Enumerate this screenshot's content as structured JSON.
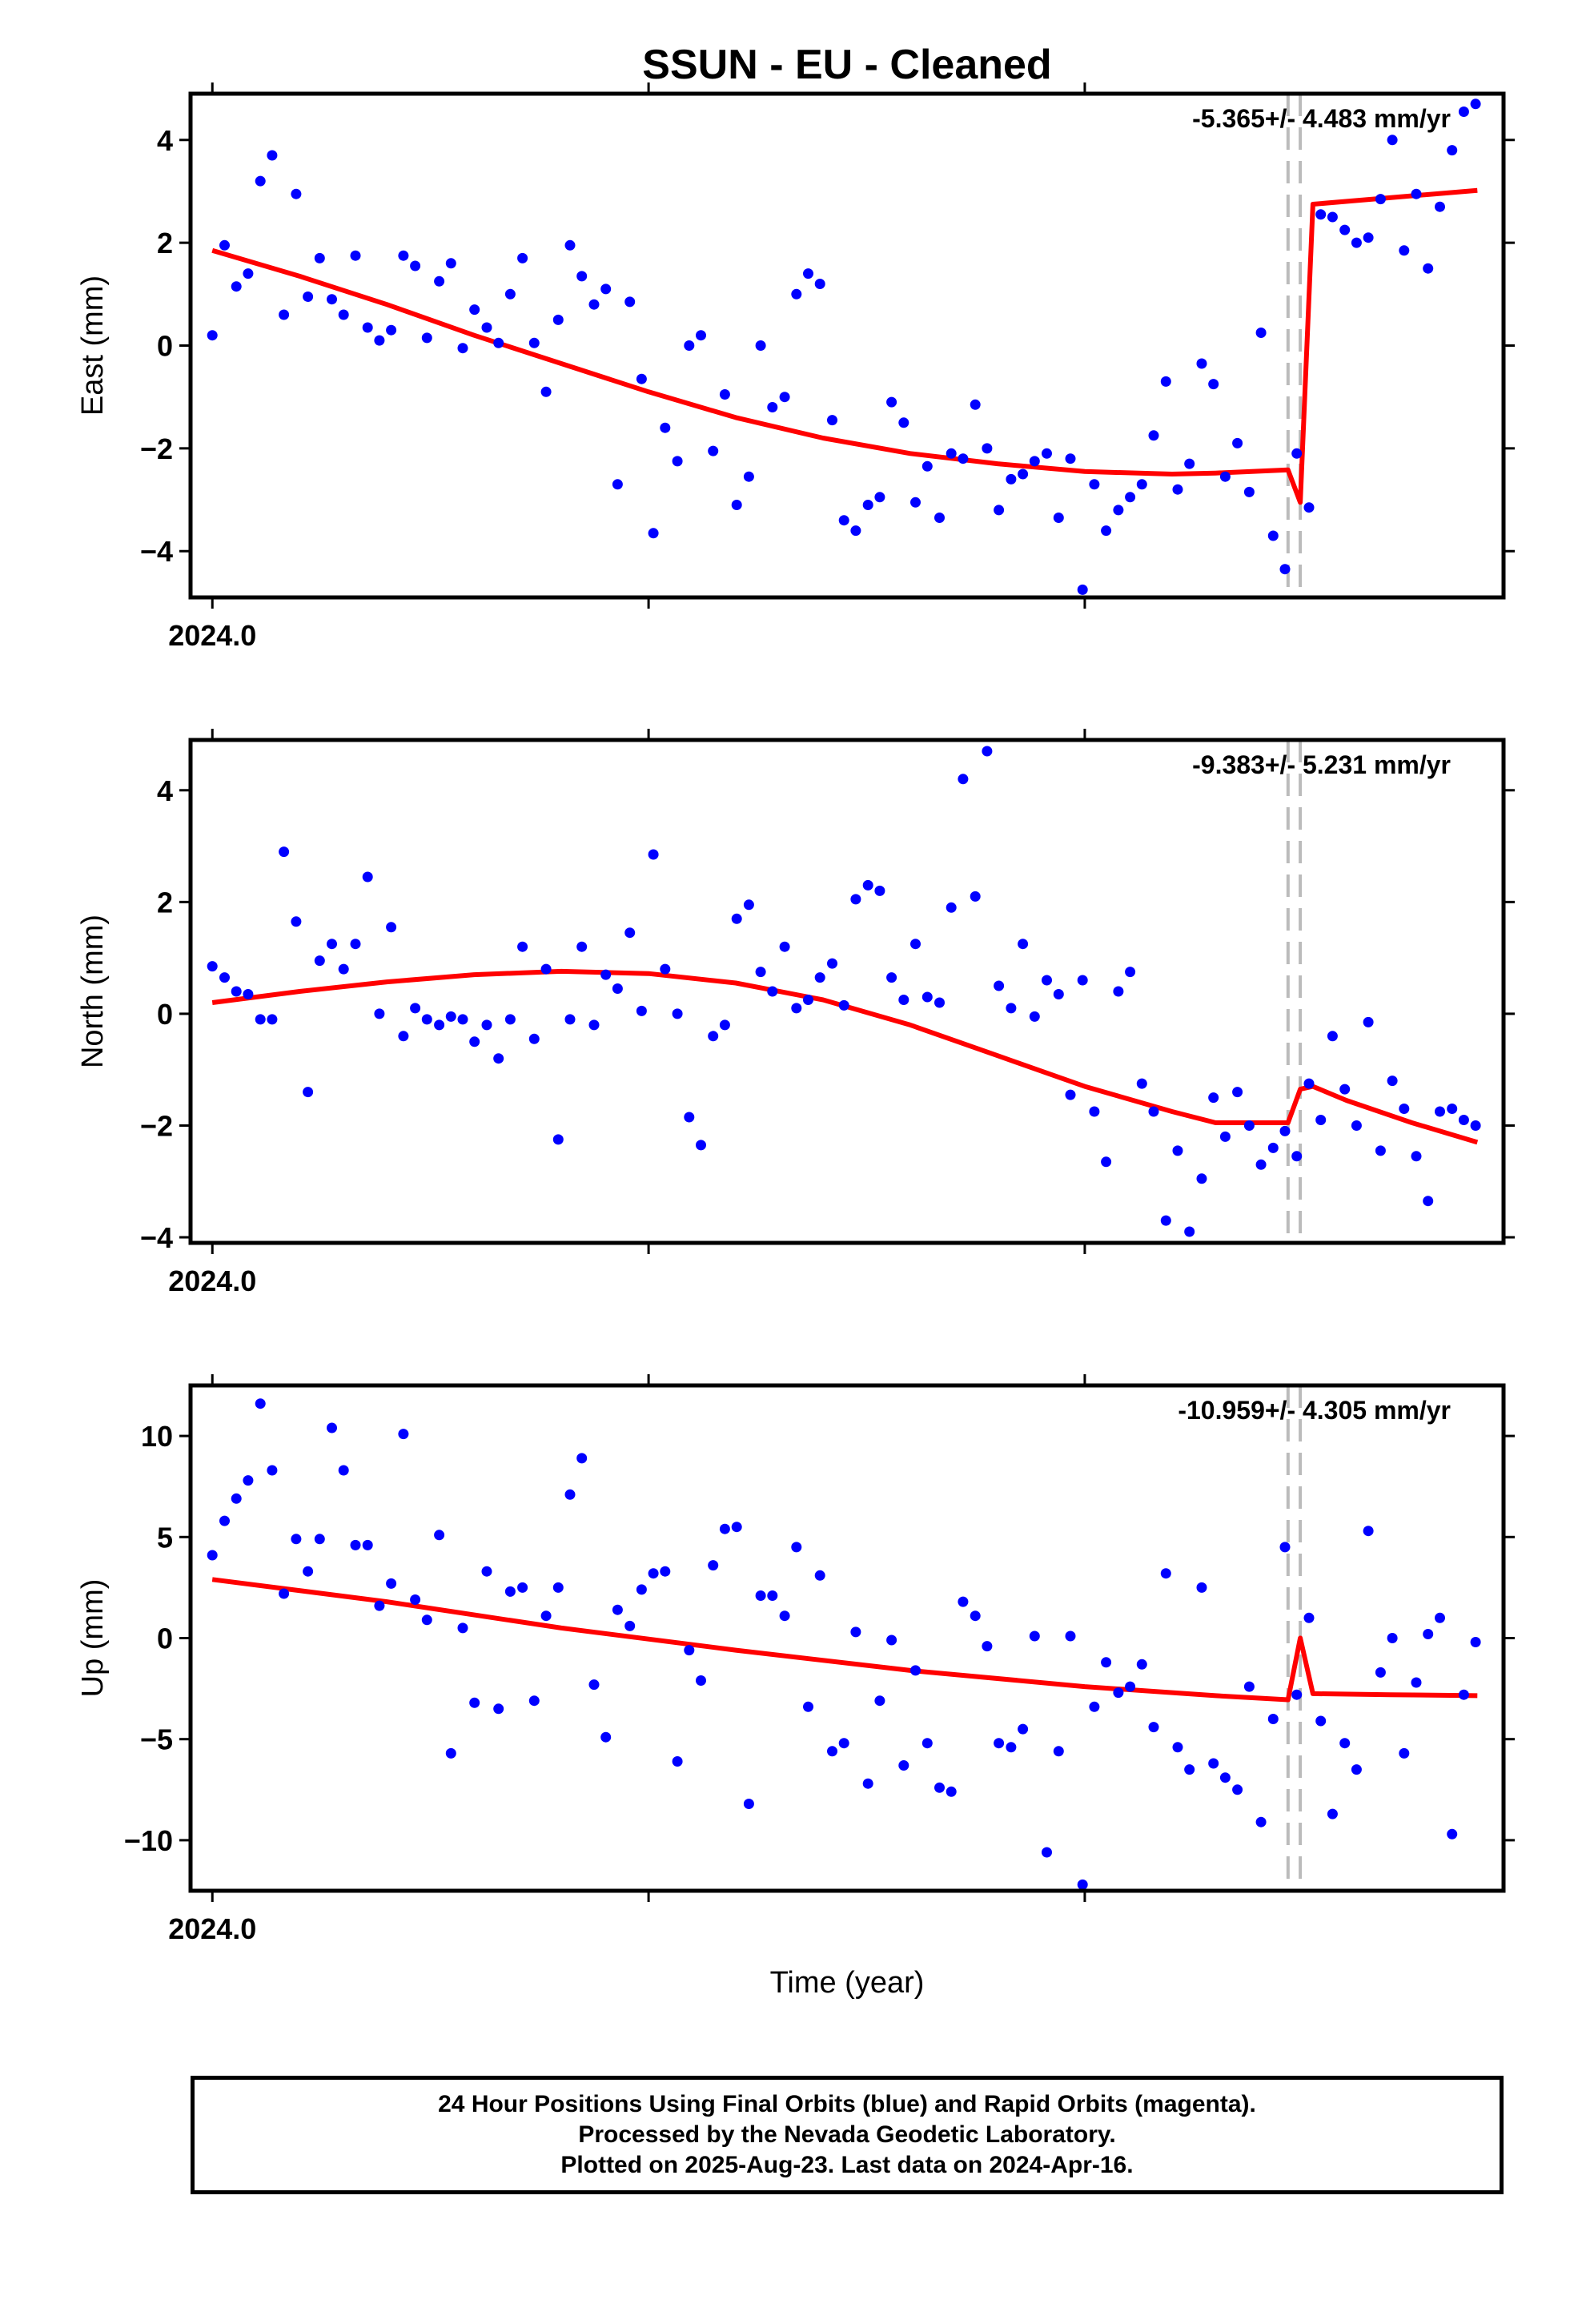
{
  "title": "SSUN  - EU - Cleaned",
  "xlabel": "Time (year)",
  "footer": {
    "line1": "24 Hour Positions Using Final Orbits (blue) and Rapid Orbits (magenta).",
    "line2": "Processed by the Nevada Geodetic Laboratory.",
    "line3": "Plotted on 2025-Aug-23. Last data on 2024-Apr-16."
  },
  "colors": {
    "final_orbits": "#0000ff",
    "model": "#ff0000",
    "offsets": "#bbbbbb"
  },
  "chart_data": [
    {
      "type": "scatter",
      "ylabel": "East (mm)",
      "rate": "-5.365+/- 4.483 mm/yr",
      "x_tick_label": "2024.0",
      "xlim": [
        2023.995,
        2024.296
      ],
      "ylim": [
        -4.9,
        4.9
      ],
      "yticks": [
        -4,
        -2,
        0,
        2,
        4
      ],
      "offsets": [
        2024.2466,
        2024.2494
      ],
      "points_x": [
        2024.0,
        2024.0028,
        2024.0055,
        2024.0082,
        2024.011,
        2024.0137,
        2024.0164,
        2024.0192,
        2024.0219,
        2024.0246,
        2024.0274,
        2024.0301,
        2024.0328,
        2024.0356,
        2024.0383,
        2024.041,
        2024.0438,
        2024.0465,
        2024.0492,
        2024.052,
        2024.0547,
        2024.0574,
        2024.0601,
        2024.0629,
        2024.0656,
        2024.0683,
        2024.0711,
        2024.0738,
        2024.0765,
        2024.0793,
        2024.082,
        2024.0847,
        2024.0875,
        2024.0902,
        2024.0929,
        2024.0957,
        2024.0984,
        2024.1011,
        2024.1038,
        2024.1066,
        2024.1093,
        2024.112,
        2024.1148,
        2024.1175,
        2024.1202,
        2024.123,
        2024.1257,
        2024.1284,
        2024.1312,
        2024.1339,
        2024.1366,
        2024.1393,
        2024.1421,
        2024.1448,
        2024.1475,
        2024.1503,
        2024.153,
        2024.1557,
        2024.1585,
        2024.1612,
        2024.1639,
        2024.1667,
        2024.1694,
        2024.1721,
        2024.1749,
        2024.1776,
        2024.1803,
        2024.1831,
        2024.1858,
        2024.1885,
        2024.1913,
        2024.194,
        2024.1967,
        2024.1995,
        2024.2022,
        2024.2049,
        2024.2077,
        2024.2104,
        2024.2131,
        2024.2158,
        2024.2186,
        2024.2213,
        2024.224,
        2024.2268,
        2024.2295,
        2024.2322,
        2024.235,
        2024.2377,
        2024.2404,
        2024.2432,
        2024.2459,
        2024.2486,
        2024.2514,
        2024.2541,
        2024.2568,
        2024.2596,
        2024.2623,
        2024.265,
        2024.2678,
        2024.2705,
        2024.2732,
        2024.276,
        2024.2787,
        2024.2814,
        2024.2842,
        2024.2869,
        2024.2896
      ],
      "points_y": [
        0.2,
        1.95,
        1.15,
        1.4,
        3.2,
        3.7,
        0.6,
        2.95,
        0.95,
        1.7,
        0.9,
        0.6,
        1.75,
        0.35,
        0.1,
        0.3,
        1.75,
        1.55,
        0.15,
        1.25,
        1.6,
        -0.05,
        0.7,
        0.35,
        0.05,
        1.0,
        1.7,
        0.05,
        -0.9,
        0.5,
        1.95,
        1.35,
        0.8,
        1.1,
        -2.7,
        0.85,
        -0.65,
        -3.65,
        -1.6,
        -2.25,
        0.0,
        0.2,
        -2.05,
        -0.95,
        -3.1,
        -2.55,
        0.0,
        -1.2,
        -1.0,
        1.0,
        1.4,
        1.2,
        -1.45,
        -3.4,
        -3.6,
        -3.1,
        -2.95,
        -1.1,
        -1.5,
        -3.05,
        -2.35,
        -3.35,
        -2.1,
        -2.2,
        -1.15,
        -2.0,
        -3.2,
        -2.6,
        -2.5,
        -2.25,
        -2.1,
        -3.35,
        -2.2,
        -4.75,
        -2.7,
        -3.6,
        -3.2,
        -2.95,
        -2.7,
        -1.75,
        -0.7,
        -2.8,
        -2.3,
        -0.35,
        -0.75,
        -2.55,
        -1.9,
        -2.85,
        0.25,
        -3.7,
        -4.35,
        -2.1,
        -3.15,
        2.55,
        2.5,
        2.25,
        2.0,
        2.1,
        2.85,
        4.0,
        1.85,
        2.95,
        1.5,
        2.7,
        3.8,
        4.55,
        4.7
      ],
      "model_x": [
        2024.0,
        2024.02,
        2024.04,
        2024.06,
        2024.08,
        2024.1,
        2024.12,
        2024.14,
        2024.16,
        2024.18,
        2024.2,
        2024.22,
        2024.23,
        2024.2466,
        2024.2494,
        2024.2523,
        2024.29
      ],
      "model_y": [
        1.85,
        1.35,
        0.8,
        0.2,
        -0.35,
        -0.9,
        -1.4,
        -1.8,
        -2.1,
        -2.3,
        -2.45,
        -2.5,
        -2.48,
        -2.42,
        -3.05,
        2.75,
        3.02
      ]
    },
    {
      "type": "scatter",
      "ylabel": "North (mm)",
      "rate": "-9.383+/- 5.231 mm/yr",
      "x_tick_label": "2024.0",
      "xlim": [
        2023.995,
        2024.296
      ],
      "ylim": [
        -4.1,
        4.9
      ],
      "yticks": [
        -4,
        -2,
        0,
        2,
        4
      ],
      "offsets": [
        2024.2466,
        2024.2494
      ],
      "points_x": [
        2024.0,
        2024.0028,
        2024.0055,
        2024.0082,
        2024.011,
        2024.0137,
        2024.0164,
        2024.0192,
        2024.0219,
        2024.0246,
        2024.0274,
        2024.0301,
        2024.0328,
        2024.0356,
        2024.0383,
        2024.041,
        2024.0438,
        2024.0465,
        2024.0492,
        2024.052,
        2024.0547,
        2024.0574,
        2024.0601,
        2024.0629,
        2024.0656,
        2024.0683,
        2024.0711,
        2024.0738,
        2024.0765,
        2024.0793,
        2024.082,
        2024.0847,
        2024.0875,
        2024.0902,
        2024.0929,
        2024.0957,
        2024.0984,
        2024.1011,
        2024.1038,
        2024.1066,
        2024.1093,
        2024.112,
        2024.1148,
        2024.1175,
        2024.1202,
        2024.123,
        2024.1257,
        2024.1284,
        2024.1312,
        2024.1339,
        2024.1366,
        2024.1393,
        2024.1421,
        2024.1448,
        2024.1475,
        2024.1503,
        2024.153,
        2024.1557,
        2024.1585,
        2024.1612,
        2024.1639,
        2024.1667,
        2024.1694,
        2024.1721,
        2024.1749,
        2024.1776,
        2024.1803,
        2024.1831,
        2024.1858,
        2024.1885,
        2024.1913,
        2024.194,
        2024.1967,
        2024.1995,
        2024.2022,
        2024.2049,
        2024.2077,
        2024.2104,
        2024.2131,
        2024.2158,
        2024.2186,
        2024.2213,
        2024.224,
        2024.2268,
        2024.2295,
        2024.2322,
        2024.235,
        2024.2377,
        2024.2404,
        2024.2432,
        2024.2459,
        2024.2486,
        2024.2514,
        2024.2541,
        2024.2568,
        2024.2596,
        2024.2623,
        2024.265,
        2024.2678,
        2024.2705,
        2024.2732,
        2024.276,
        2024.2787,
        2024.2814,
        2024.2842,
        2024.2869,
        2024.2896
      ],
      "points_y": [
        0.85,
        0.65,
        0.4,
        0.35,
        -0.1,
        -0.1,
        2.9,
        1.65,
        -1.4,
        0.95,
        1.25,
        0.8,
        1.25,
        2.45,
        0.0,
        1.55,
        -0.4,
        0.1,
        -0.1,
        -0.2,
        -0.05,
        -0.1,
        -0.5,
        -0.2,
        -0.8,
        -0.1,
        1.2,
        -0.45,
        0.8,
        -2.25,
        -0.1,
        1.2,
        -0.2,
        0.7,
        0.45,
        1.45,
        0.05,
        2.85,
        0.8,
        0.0,
        -1.85,
        -2.35,
        -0.4,
        -0.2,
        1.7,
        1.95,
        0.75,
        0.4,
        1.2,
        0.1,
        0.25,
        0.65,
        0.9,
        0.15,
        2.05,
        2.3,
        2.2,
        0.65,
        0.25,
        1.25,
        0.3,
        0.2,
        1.9,
        4.2,
        2.1,
        4.7,
        0.5,
        0.1,
        1.25,
        -0.05,
        0.6,
        0.35,
        -1.45,
        0.6,
        -1.75,
        -2.65,
        0.4,
        0.75,
        -1.25,
        -1.75,
        -3.7,
        -2.45,
        -3.9,
        -2.95,
        -1.5,
        -2.2,
        -1.4,
        -2.0,
        -2.7,
        -2.4,
        -2.1,
        -2.55,
        -1.25,
        -1.9,
        -0.4,
        -1.35,
        -2.0,
        -0.15,
        -2.45,
        -1.2,
        -1.7,
        -2.55,
        -3.35,
        -1.75,
        -1.7,
        -1.9,
        -2.0
      ],
      "model_x": [
        2024.0,
        2024.02,
        2024.04,
        2024.06,
        2024.08,
        2024.1,
        2024.12,
        2024.14,
        2024.16,
        2024.18,
        2024.2,
        2024.22,
        2024.23,
        2024.2466,
        2024.2494,
        2024.2523,
        2024.26,
        2024.275,
        2024.29
      ],
      "model_y": [
        0.2,
        0.4,
        0.57,
        0.7,
        0.76,
        0.72,
        0.55,
        0.25,
        -0.2,
        -0.75,
        -1.3,
        -1.75,
        -1.95,
        -1.95,
        -1.35,
        -1.3,
        -1.55,
        -1.95,
        -2.3
      ]
    },
    {
      "type": "scatter",
      "ylabel": "Up (mm)",
      "rate": "-10.959+/- 4.305 mm/yr",
      "x_tick_label": "2024.0",
      "xlim": [
        2023.995,
        2024.296
      ],
      "ylim": [
        -12.5,
        12.5
      ],
      "yticks": [
        -10,
        -5,
        0,
        5,
        10
      ],
      "offsets": [
        2024.2466,
        2024.2494
      ],
      "points_x": [
        2024.0,
        2024.0028,
        2024.0055,
        2024.0082,
        2024.011,
        2024.0137,
        2024.0164,
        2024.0192,
        2024.0219,
        2024.0246,
        2024.0274,
        2024.0301,
        2024.0328,
        2024.0356,
        2024.0383,
        2024.041,
        2024.0438,
        2024.0465,
        2024.0492,
        2024.052,
        2024.0547,
        2024.0574,
        2024.0601,
        2024.0629,
        2024.0656,
        2024.0683,
        2024.0711,
        2024.0738,
        2024.0765,
        2024.0793,
        2024.082,
        2024.0847,
        2024.0875,
        2024.0902,
        2024.0929,
        2024.0957,
        2024.0984,
        2024.1011,
        2024.1038,
        2024.1066,
        2024.1093,
        2024.112,
        2024.1148,
        2024.1175,
        2024.1202,
        2024.123,
        2024.1257,
        2024.1284,
        2024.1312,
        2024.1339,
        2024.1366,
        2024.1393,
        2024.1421,
        2024.1448,
        2024.1475,
        2024.1503,
        2024.153,
        2024.1557,
        2024.1585,
        2024.1612,
        2024.1639,
        2024.1667,
        2024.1694,
        2024.1721,
        2024.1749,
        2024.1776,
        2024.1803,
        2024.1831,
        2024.1858,
        2024.1885,
        2024.1913,
        2024.194,
        2024.1967,
        2024.1995,
        2024.2022,
        2024.2049,
        2024.2077,
        2024.2104,
        2024.2131,
        2024.2158,
        2024.2186,
        2024.2213,
        2024.224,
        2024.2268,
        2024.2295,
        2024.2322,
        2024.235,
        2024.2377,
        2024.2404,
        2024.2432,
        2024.2459,
        2024.2486,
        2024.2514,
        2024.2541,
        2024.2568,
        2024.2596,
        2024.2623,
        2024.265,
        2024.2678,
        2024.2705,
        2024.2732,
        2024.276,
        2024.2787,
        2024.2814,
        2024.2842,
        2024.2869,
        2024.2896
      ],
      "points_y": [
        4.1,
        5.8,
        6.9,
        7.8,
        11.6,
        8.3,
        2.2,
        4.9,
        3.3,
        4.9,
        10.4,
        8.3,
        4.6,
        4.6,
        1.6,
        2.7,
        10.1,
        1.9,
        0.9,
        5.1,
        -5.7,
        0.5,
        -3.2,
        3.3,
        -3.5,
        2.3,
        2.5,
        -3.1,
        1.1,
        2.5,
        7.1,
        8.9,
        -2.3,
        -4.9,
        1.4,
        0.6,
        2.4,
        3.2,
        3.3,
        -6.1,
        -0.6,
        -2.1,
        3.6,
        5.4,
        5.5,
        -8.2,
        2.1,
        2.1,
        1.1,
        4.5,
        -3.4,
        3.1,
        -5.6,
        -5.2,
        0.3,
        -7.2,
        -3.1,
        -0.1,
        -6.3,
        -1.6,
        -5.2,
        -7.4,
        -7.6,
        1.8,
        1.1,
        -0.4,
        -5.2,
        -5.4,
        -4.5,
        0.1,
        -10.6,
        -5.6,
        0.1,
        -12.2,
        -3.4,
        -1.2,
        -2.7,
        -2.4,
        -1.3,
        -4.4,
        3.2,
        -5.4,
        -6.5,
        2.5,
        -6.2,
        -6.9,
        -7.5,
        -2.4,
        -9.1,
        -4.0,
        4.5,
        -2.8,
        1.0,
        -4.1,
        -8.7,
        -5.2,
        -6.5,
        5.3,
        -1.7,
        0.0,
        -5.7,
        -2.2,
        0.2,
        1.0,
        -9.7,
        -2.8,
        -0.2
      ],
      "model_x": [
        2024.0,
        2024.04,
        2024.08,
        2024.12,
        2024.16,
        2024.2,
        2024.23,
        2024.2466,
        2024.2494,
        2024.2523,
        2024.27,
        2024.29
      ],
      "model_y": [
        2.9,
        1.8,
        0.5,
        -0.6,
        -1.6,
        -2.4,
        -2.85,
        -3.05,
        0.0,
        -2.75,
        -2.8,
        -2.85
      ]
    }
  ]
}
